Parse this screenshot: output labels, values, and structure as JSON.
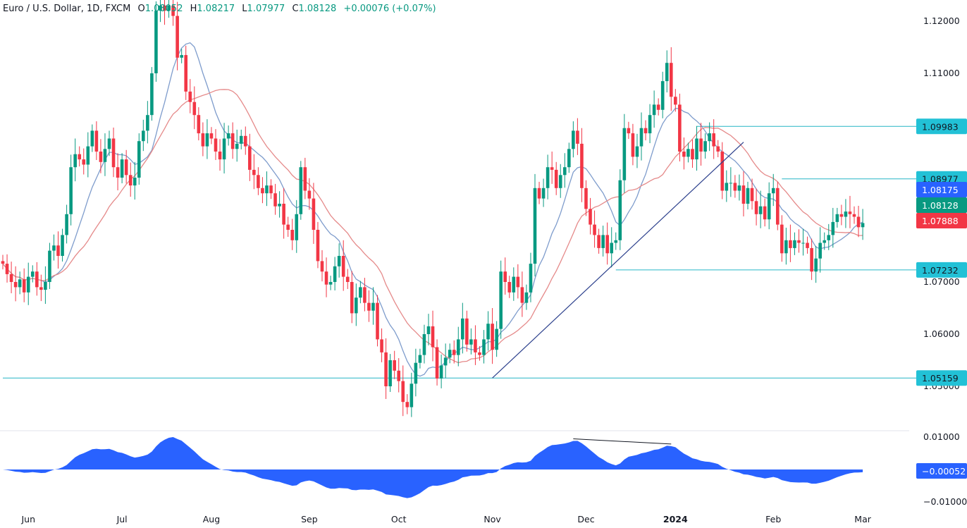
{
  "header": {
    "symbol": "Euro / U.S. Dollar, 1D, FXCM",
    "open_label": "O",
    "open": "1.08052",
    "high_label": "H",
    "high": "1.08217",
    "low_label": "L",
    "low": "1.07977",
    "close_label": "C",
    "close": "1.08128",
    "change": "+0.00076 (+0.07%)"
  },
  "price_axis": {
    "ticks": [
      {
        "value": 1.12,
        "label": "1.12000"
      },
      {
        "value": 1.11,
        "label": "1.11000"
      },
      {
        "value": 1.07,
        "label": "1.07000"
      },
      {
        "value": 1.06,
        "label": "1.06000"
      },
      {
        "value": 1.05,
        "label": "1.05000"
      }
    ]
  },
  "time_axis": {
    "labels": [
      {
        "label": "Jun",
        "index": 6,
        "bold": false
      },
      {
        "label": "Jul",
        "index": 28,
        "bold": false
      },
      {
        "label": "Aug",
        "index": 49,
        "bold": false
      },
      {
        "label": "Sep",
        "index": 72,
        "bold": false
      },
      {
        "label": "Oct",
        "index": 93,
        "bold": false
      },
      {
        "label": "Nov",
        "index": 115,
        "bold": false
      },
      {
        "label": "Dec",
        "index": 137,
        "bold": false
      },
      {
        "label": "2024",
        "index": 158,
        "bold": true
      },
      {
        "label": "Feb",
        "index": 181,
        "bold": false
      },
      {
        "label": "Mar",
        "index": 202,
        "bold": false
      }
    ]
  },
  "levels": [
    {
      "value": 1.09983,
      "label": "1.09983",
      "from_index": 163
    },
    {
      "value": 1.08977,
      "label": "1.08977",
      "from_index": 183
    },
    {
      "value": 1.07232,
      "label": "1.07232",
      "from_index": 144
    },
    {
      "value": 1.05159,
      "label": "1.05159",
      "from_index": 0
    }
  ],
  "trendline": {
    "from": {
      "index": 115,
      "value": 1.05159
    },
    "to": {
      "index": 174,
      "value": 1.0968
    }
  },
  "last_values": [
    {
      "label": "1.08175",
      "color": "#2962ff",
      "series": "fast-ma"
    },
    {
      "label": "1.08128",
      "color": "#089981",
      "series": "price"
    },
    {
      "label": "1.07888",
      "color": "#f23645",
      "series": "slow-ma"
    }
  ],
  "oscillator": {
    "ticks": [
      {
        "value": 0.01,
        "label": "0.01000"
      },
      {
        "value": -0.01,
        "label": "−0.01000"
      }
    ],
    "last_label": "−0.00052",
    "divergence_line": {
      "from_index": 134,
      "to_index": 157
    }
  },
  "colors": {
    "up": "#089981",
    "down": "#f23645",
    "fast_ma": "#7e9ccc",
    "slow_ma": "#e58a8a",
    "level": "#26b6c6",
    "level_label": "#22c1d6",
    "trendline": "#2b3f8c",
    "oscillator": "#2962ff"
  },
  "chart_data": {
    "type": "candlestick",
    "first_open": 1.074,
    "closes": [
      1.0735,
      1.0715,
      1.07,
      1.069,
      1.0705,
      1.068,
      1.071,
      1.072,
      1.069,
      1.0685,
      1.07,
      1.076,
      1.077,
      1.075,
      1.079,
      1.083,
      1.092,
      1.0945,
      1.0935,
      1.0925,
      1.096,
      1.099,
      1.095,
      1.093,
      1.0955,
      1.0975,
      1.092,
      1.09,
      1.0935,
      1.0905,
      1.0885,
      1.09,
      1.097,
      1.099,
      1.102,
      1.11,
      1.122,
      1.123,
      1.122,
      1.123,
      1.121,
      1.113,
      1.1135,
      1.1065,
      1.1045,
      1.102,
      1.0985,
      1.096,
      1.0985,
      1.0975,
      1.095,
      1.0935,
      1.0975,
      1.0985,
      1.0955,
      1.0965,
      1.098,
      1.096,
      1.0915,
      1.0905,
      1.088,
      1.087,
      1.0885,
      1.087,
      1.0845,
      1.085,
      1.081,
      1.08,
      1.078,
      1.083,
      1.092,
      1.0875,
      1.086,
      1.08,
      1.074,
      1.072,
      1.0695,
      1.07,
      1.073,
      1.075,
      1.071,
      1.07,
      1.064,
      1.067,
      1.069,
      1.066,
      1.0645,
      1.066,
      1.059,
      1.0565,
      1.05,
      1.055,
      1.053,
      1.051,
      1.047,
      1.046,
      1.0505,
      1.0545,
      1.056,
      1.06,
      1.0615,
      1.0575,
      1.0515,
      1.054,
      1.0555,
      1.057,
      1.056,
      1.059,
      1.063,
      1.058,
      1.059,
      1.0565,
      1.056,
      1.059,
      1.062,
      1.057,
      1.061,
      1.072,
      1.07,
      1.068,
      1.071,
      1.069,
      1.066,
      1.068,
      1.0735,
      1.088,
      1.086,
      1.088,
      1.092,
      1.0915,
      1.088,
      1.0905,
      1.092,
      1.0955,
      1.099,
      1.0965,
      1.088,
      1.084,
      1.081,
      1.079,
      1.0765,
      1.079,
      1.0755,
      1.0775,
      1.078,
      1.0895,
      1.0995,
      1.0985,
      1.094,
      1.096,
      1.0995,
      1.0985,
      1.102,
      1.104,
      1.103,
      1.1085,
      1.112,
      1.1055,
      1.104,
      1.095,
      1.094,
      1.0955,
      1.0935,
      1.0975,
      1.095,
      1.097,
      1.0985,
      1.096,
      1.095,
      1.0875,
      1.089,
      1.089,
      1.0875,
      1.0885,
      1.085,
      1.088,
      1.0855,
      1.083,
      1.0845,
      1.082,
      1.087,
      1.088,
      1.081,
      1.0755,
      1.078,
      1.0765,
      1.078,
      1.0775,
      1.0775,
      1.0765,
      1.072,
      1.0745,
      1.0775,
      1.078,
      1.079,
      1.0815,
      1.083,
      1.0825,
      1.0835,
      1.083,
      1.0825,
      1.0805,
      1.0813
    ],
    "ylim": [
      1.0425,
      1.1235
    ],
    "oscillator_ylim": [
      -0.013,
      0.013
    ]
  }
}
